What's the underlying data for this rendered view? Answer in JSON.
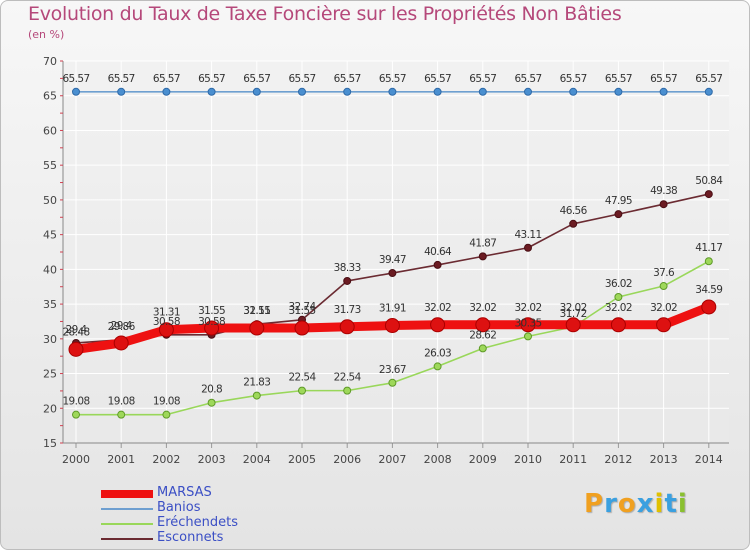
{
  "chart_data": {
    "type": "line",
    "title": "Evolution du Taux de Taxe Foncière sur les Propriétés Non Bâties",
    "ylabel": "(en %)",
    "xlabel": "",
    "ylim": [
      15,
      70
    ],
    "yticks": [
      15,
      20,
      25,
      30,
      35,
      40,
      45,
      50,
      55,
      60,
      65,
      70
    ],
    "categories": [
      "2000",
      "2001",
      "2002",
      "2003",
      "2004",
      "2005",
      "2006",
      "2007",
      "2008",
      "2009",
      "2010",
      "2011",
      "2012",
      "2013",
      "2014"
    ],
    "series": [
      {
        "name": "MARSAS",
        "color": "#ee1111",
        "values": [
          28.48,
          29.4,
          31.31,
          31.55,
          31.55,
          31.55,
          31.73,
          31.91,
          32.02,
          32.02,
          32.02,
          32.02,
          32.02,
          32.02,
          34.59
        ],
        "labels": [
          "28.48",
          "29.4",
          "31.31",
          "31.55",
          "31.55",
          "31.55",
          "31.73",
          "31.91",
          "32.02",
          "32.02",
          "32.02",
          "32.02",
          "32.02",
          "32.02",
          "34.59"
        ]
      },
      {
        "name": "Banios",
        "color": "#6e9fd0",
        "values": [
          65.57,
          65.57,
          65.57,
          65.57,
          65.57,
          65.57,
          65.57,
          65.57,
          65.57,
          65.57,
          65.57,
          65.57,
          65.57,
          65.57,
          65.57
        ],
        "labels": [
          "65.57",
          "65.57",
          "65.57",
          "65.57",
          "65.57",
          "65.57",
          "65.57",
          "65.57",
          "65.57",
          "65.57",
          "65.57",
          "65.57",
          "65.57",
          "65.57",
          "65.57"
        ]
      },
      {
        "name": "Eréchendets",
        "color": "#99d75a",
        "values": [
          19.08,
          19.08,
          19.08,
          20.8,
          21.83,
          22.54,
          22.54,
          23.67,
          26.03,
          28.62,
          30.35,
          31.72,
          36.02,
          37.6,
          41.17
        ],
        "labels": [
          "19.08",
          "19.08",
          "19.08",
          "20.8",
          "21.83",
          "22.54",
          "22.54",
          "23.67",
          "26.03",
          "28.62",
          "30.35",
          "31.72",
          "36.02",
          "37.6",
          "41.17"
        ]
      },
      {
        "name": "Esconnets",
        "color": "#6b2b32",
        "values": [
          29.4,
          29.86,
          30.58,
          30.58,
          32.11,
          32.74,
          38.33,
          39.47,
          40.64,
          41.87,
          43.11,
          46.56,
          47.95,
          49.38,
          50.84
        ],
        "labels": [
          "29.4",
          "29.86",
          "30.58",
          "30.58",
          "32.11",
          "32.74",
          "38.33",
          "39.47",
          "40.64",
          "41.87",
          "43.11",
          "46.56",
          "47.95",
          "49.38",
          "50.84"
        ]
      }
    ]
  },
  "brand": {
    "letters": [
      "P",
      "r",
      "o",
      "x",
      "i",
      "t",
      "i"
    ],
    "colors": [
      "#f0a020",
      "#3aa0e0",
      "#f0a020",
      "#3aa0e0",
      "#e0c000",
      "#3aa0e0",
      "#8ac030"
    ]
  }
}
